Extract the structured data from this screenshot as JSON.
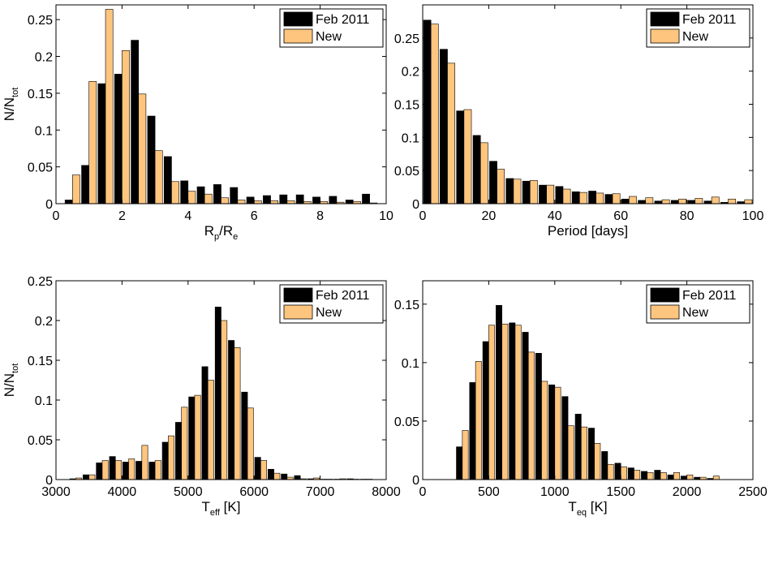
{
  "colors": {
    "series_old": "#000000",
    "series_new": "#fec57f",
    "axis": "#000000",
    "background": "#ffffff"
  },
  "legend": {
    "entries": [
      "Feb 2011",
      "New"
    ],
    "placement": "top-right"
  },
  "chart_data": [
    {
      "type": "bar",
      "title": "",
      "xlabel": {
        "main": "R",
        "sub1": "p",
        "slash": "/R",
        "sub2": "e"
      },
      "ylabel": {
        "main": "N/N",
        "sub": "tot"
      },
      "xlim": [
        0,
        10
      ],
      "ylim": [
        0,
        0.27
      ],
      "xticks": [
        0,
        2,
        4,
        6,
        8,
        10
      ],
      "xtick_labels": [
        "0",
        "2",
        "4",
        "6",
        "8",
        "10"
      ],
      "yticks": [
        0,
        0.05,
        0.1,
        0.15,
        0.2,
        0.25
      ],
      "ytick_labels": [
        "0",
        "0.05",
        "0.1",
        "0.15",
        "0.2",
        "0.25"
      ],
      "bin_width": 0.5,
      "x": [
        0.5,
        1.0,
        1.5,
        2.0,
        2.5,
        3.0,
        3.5,
        4.0,
        4.5,
        5.0,
        5.5,
        6.0,
        6.5,
        7.0,
        7.5,
        8.0,
        8.5,
        9.0,
        9.5,
        10.0
      ],
      "series": [
        {
          "name": "Feb 2011",
          "values": [
            0.005,
            0.052,
            0.163,
            0.176,
            0.222,
            0.119,
            0.064,
            0.031,
            0.023,
            0.026,
            0.022,
            0.009,
            0.011,
            0.012,
            0.012,
            0.009,
            0.01,
            0.005,
            0.013,
            0
          ]
        },
        {
          "name": "New",
          "values": [
            0.039,
            0.166,
            0.264,
            0.208,
            0.149,
            0.072,
            0.03,
            0.017,
            0.013,
            0.008,
            0.005,
            0.004,
            0.004,
            0.004,
            0.003,
            0.003,
            0.002,
            0.003,
            0.001,
            0
          ]
        }
      ]
    },
    {
      "type": "bar",
      "title": "",
      "xlabel": {
        "main": "Period [days]"
      },
      "ylabel": {
        "main": ""
      },
      "xlim": [
        0,
        100
      ],
      "ylim": [
        0,
        0.3
      ],
      "xticks": [
        0,
        20,
        40,
        60,
        80,
        100
      ],
      "xtick_labels": [
        "0",
        "20",
        "40",
        "60",
        "80",
        "100"
      ],
      "yticks": [
        0,
        0.05,
        0.1,
        0.15,
        0.2,
        0.25
      ],
      "ytick_labels": [
        "0",
        "0.05",
        "0.1",
        "0.15",
        "0.2",
        "0.25"
      ],
      "bin_width": 5,
      "x": [
        2.5,
        7.5,
        12.5,
        17.5,
        22.5,
        27.5,
        32.5,
        37.5,
        42.5,
        47.5,
        52.5,
        57.5,
        62.5,
        67.5,
        72.5,
        77.5,
        82.5,
        87.5,
        92.5,
        97.5
      ],
      "series": [
        {
          "name": "Feb 2011",
          "values": [
            0.277,
            0.233,
            0.14,
            0.103,
            0.064,
            0.038,
            0.034,
            0.028,
            0.026,
            0.018,
            0.019,
            0.014,
            0.007,
            0.005,
            0.004,
            0.005,
            0.005,
            0.004,
            0.002,
            0.003
          ]
        },
        {
          "name": "New",
          "values": [
            0.271,
            0.212,
            0.142,
            0.092,
            0.052,
            0.037,
            0.035,
            0.028,
            0.022,
            0.017,
            0.016,
            0.015,
            0.011,
            0.009,
            0.006,
            0.007,
            0.008,
            0.01,
            0.007,
            0.006
          ]
        }
      ]
    },
    {
      "type": "bar",
      "title": "",
      "xlabel": {
        "main": "T",
        "sub1": "eff",
        "slash": " [K]"
      },
      "ylabel": {
        "main": "N/N",
        "sub": "tot"
      },
      "xlim": [
        3000,
        8000
      ],
      "ylim": [
        0,
        0.25
      ],
      "xticks": [
        3000,
        4000,
        5000,
        6000,
        7000,
        8000
      ],
      "xtick_labels": [
        "3000",
        "4000",
        "5000",
        "6000",
        "7000",
        "8000"
      ],
      "yticks": [
        0,
        0.05,
        0.1,
        0.15,
        0.2,
        0.25
      ],
      "ytick_labels": [
        "0",
        "0.05",
        "0.1",
        "0.15",
        "0.2",
        "0.25"
      ],
      "bin_width": 200,
      "x": [
        3300,
        3500,
        3700,
        3900,
        4100,
        4300,
        4500,
        4700,
        4900,
        5100,
        5300,
        5500,
        5700,
        5900,
        6100,
        6300,
        6500,
        6700,
        6900,
        7100,
        7300,
        7500,
        7700
      ],
      "series": [
        {
          "name": "Feb 2011",
          "values": [
            0.001,
            0.006,
            0.021,
            0.029,
            0.022,
            0.023,
            0.022,
            0.047,
            0.072,
            0.104,
            0.142,
            0.217,
            0.175,
            0.11,
            0.028,
            0.013,
            0.007,
            0.005,
            0.001,
            0.0005,
            0.0005,
            0.001,
            0.0005
          ]
        },
        {
          "name": "New",
          "values": [
            0.002,
            0.006,
            0.024,
            0.024,
            0.026,
            0.043,
            0.024,
            0.055,
            0.091,
            0.106,
            0.125,
            0.2,
            0.166,
            0.09,
            0.024,
            0.008,
            0.003,
            0.001,
            0.002,
            0.0005,
            0.001,
            0.0005,
            0.0005
          ]
        }
      ]
    },
    {
      "type": "bar",
      "title": "",
      "xlabel": {
        "main": "T",
        "sub1": "eq",
        "slash": " [K]"
      },
      "ylabel": {
        "main": ""
      },
      "xlim": [
        0,
        2500
      ],
      "ylim": [
        0,
        0.17
      ],
      "xticks": [
        0,
        500,
        1000,
        1500,
        2000,
        2500
      ],
      "xtick_labels": [
        "0",
        "500",
        "1000",
        "1500",
        "2000",
        "2500"
      ],
      "yticks": [
        0,
        0.05,
        0.1,
        0.15
      ],
      "ytick_labels": [
        "0",
        "0.05",
        "0.1",
        "0.15"
      ],
      "bin_width": 100,
      "x": [
        300,
        400,
        500,
        600,
        700,
        800,
        900,
        1000,
        1100,
        1200,
        1300,
        1400,
        1500,
        1600,
        1700,
        1800,
        1900,
        2000,
        2100,
        2200,
        2300
      ],
      "series": [
        {
          "name": "Feb 2011",
          "values": [
            0.028,
            0.083,
            0.118,
            0.149,
            0.134,
            0.126,
            0.108,
            0.081,
            0.071,
            0.056,
            0.044,
            0.024,
            0.014,
            0.01,
            0.007,
            0.008,
            0.004,
            0.003,
            0.002,
            0.001,
            0
          ]
        },
        {
          "name": "New",
          "values": [
            0.042,
            0.101,
            0.132,
            0.133,
            0.132,
            0.109,
            0.084,
            0.079,
            0.046,
            0.045,
            0.031,
            0.013,
            0.011,
            0.008,
            0.006,
            0.006,
            0.006,
            0.004,
            0.002,
            0.003,
            0
          ]
        }
      ]
    }
  ]
}
